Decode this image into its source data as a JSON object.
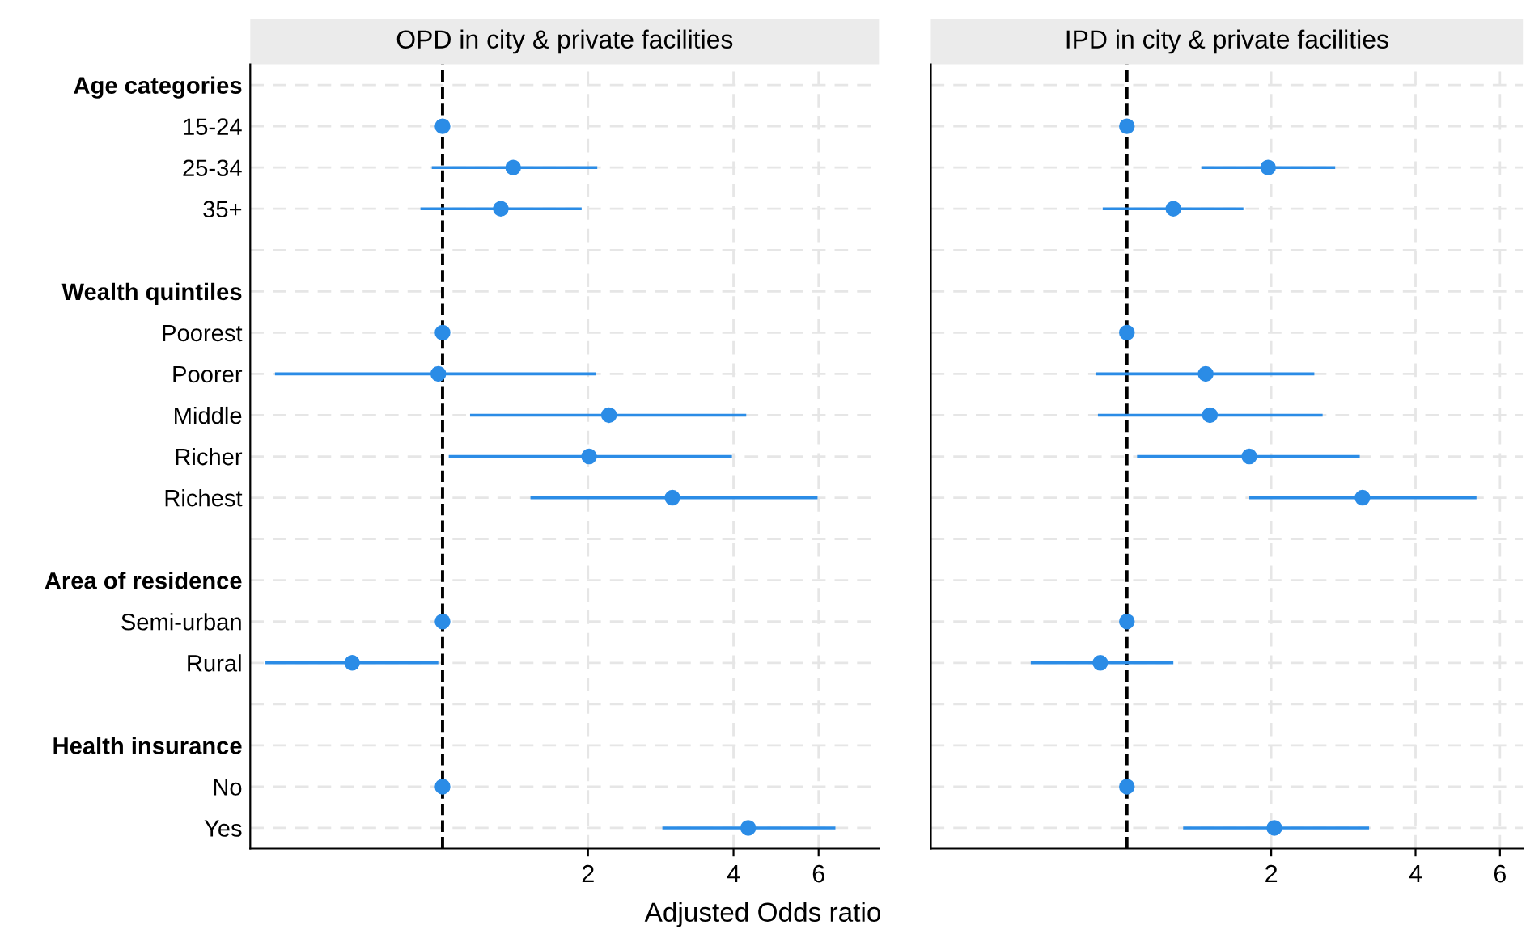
{
  "chart_data": [
    {
      "type": "scatter",
      "title": "OPD in city & private facilities",
      "xlabel": "Adjusted Odds ratio",
      "orientation": "horizontal",
      "log": "x",
      "xlim": [
        0.4,
        8
      ],
      "xticks": [
        2,
        4,
        6
      ],
      "grid": true,
      "marker": "circle",
      "color": "#2b8ce6",
      "categories": [
        "Age categories",
        "15-24",
        "25-34",
        "35+",
        null,
        "Wealth quintiles",
        "Poorest",
        "Poorer",
        "Middle",
        "Richer",
        "Richest",
        null,
        "Area of residence",
        "Semi-urban",
        "Rural",
        null,
        "Health insurance",
        "No",
        "Yes"
      ],
      "values": [
        null,
        1,
        1.4,
        1.32,
        null,
        null,
        1,
        0.98,
        2.21,
        2.01,
        2.99,
        null,
        null,
        1,
        0.65,
        null,
        null,
        1,
        4.29
      ],
      "errors": [
        null,
        null,
        [
          0.95,
          2.09
        ],
        [
          0.9,
          1.94
        ],
        null,
        null,
        null,
        [
          0.45,
          2.08
        ],
        [
          1.14,
          4.25
        ],
        [
          1.03,
          3.97
        ],
        [
          1.52,
          5.97
        ],
        null,
        null,
        null,
        [
          0.43,
          0.98
        ],
        null,
        null,
        null,
        [
          2.85,
          6.5
        ]
      ],
      "ref_lines": [
        {
          "axis": "x",
          "value": 1,
          "color": "#000000",
          "line_style": "dashed"
        }
      ]
    },
    {
      "type": "scatter",
      "title": "IPD in city & private facilities",
      "orientation": "horizontal",
      "log": "x",
      "xlim": [
        0.39,
        6.7
      ],
      "xticks": [
        2,
        4,
        6
      ],
      "grid": true,
      "marker": "circle",
      "color": "#2b8ce6",
      "tick_labels": "x",
      "values": [
        null,
        1,
        1.97,
        1.25,
        null,
        null,
        1,
        1.46,
        1.49,
        1.8,
        3.1,
        null,
        null,
        1,
        0.88,
        null,
        null,
        1,
        2.03
      ],
      "errors": [
        null,
        null,
        [
          1.43,
          2.72
        ],
        [
          0.89,
          1.75
        ],
        null,
        null,
        null,
        [
          0.86,
          2.46
        ],
        [
          0.87,
          2.56
        ],
        [
          1.05,
          3.06
        ],
        [
          1.8,
          5.36
        ],
        null,
        null,
        null,
        [
          0.63,
          1.25
        ],
        null,
        null,
        null,
        [
          1.31,
          3.2
        ]
      ],
      "ref_lines": [
        {
          "axis": "x",
          "value": 1,
          "color": "#000000",
          "line_style": "dashed"
        }
      ]
    }
  ]
}
